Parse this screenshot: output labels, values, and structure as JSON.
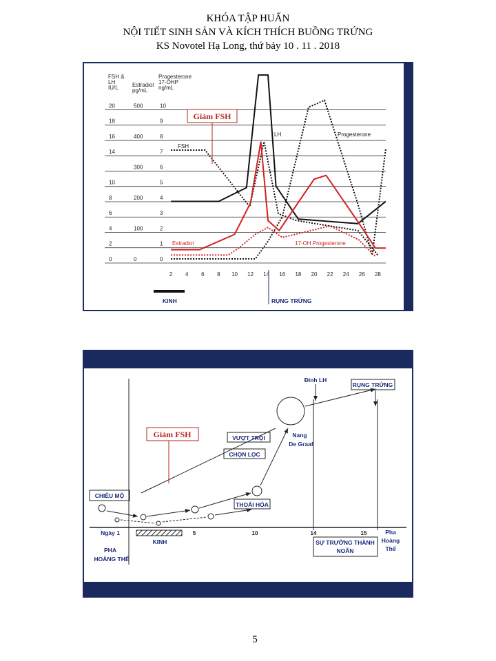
{
  "header": {
    "lines": [
      "KHÓA TẬP HUẤN",
      "NỘI TIẾT SINH SẢN VÀ KÍCH THÍCH BUỒNG TRỨNG",
      "KS Novotel Hạ Long, thứ bảy 10 . 11 . 2018"
    ]
  },
  "chart_data": {
    "type": "line",
    "axis_titles": {
      "fsh_lh": [
        "FSH &",
        "LH",
        "IU/L"
      ],
      "estradiol": [
        "Estradiol",
        "pg/mL"
      ],
      "progesterone": [
        "Progesterone",
        "17-OHP",
        "ng/mL"
      ]
    },
    "xlim": [
      0,
      29
    ],
    "xticks": [
      2,
      4,
      6,
      8,
      10,
      12,
      14,
      16,
      18,
      20,
      22,
      24,
      26,
      28
    ],
    "ylim": [
      0,
      24.8
    ],
    "yticks": [
      0,
      2,
      4,
      6,
      8,
      10,
      14,
      16,
      18,
      20
    ],
    "estradiol_lim": [
      0,
      620
    ],
    "estradiol_ticks": [
      0,
      100,
      200,
      300,
      400,
      500
    ],
    "progesterone_lim": [
      0,
      12.4
    ],
    "progesterone_ticks": [
      0,
      1,
      2,
      3,
      4,
      5,
      6,
      7,
      8,
      9,
      10
    ],
    "grid": true,
    "series": [
      {
        "name": "FSH",
        "color": "#111111",
        "dashed": true,
        "x": [
          2,
          6.3,
          11.9,
          13.7,
          15.5,
          17.8,
          25.5,
          28
        ],
        "values": [
          14.2,
          14.2,
          6.8,
          15.3,
          5.9,
          5,
          3.7,
          0.5
        ]
      },
      {
        "name": "LH",
        "color": "#111111",
        "dashed": false,
        "x": [
          2,
          8,
          11.5,
          13,
          14.2,
          15.2,
          18,
          25.5,
          29
        ],
        "values": [
          7.5,
          7.5,
          9.3,
          24,
          24,
          9.5,
          5.2,
          4.6,
          7.5
        ]
      },
      {
        "name": "Progesterone",
        "color": "#111111",
        "dashed": true,
        "x": [
          2,
          12.6,
          14.2,
          16,
          19.3,
          21.3,
          25.6,
          27.3,
          29
        ],
        "values": [
          0,
          0,
          2.3,
          5.5,
          19.8,
          20.7,
          6.8,
          0.5,
          14.4
        ]
      },
      {
        "name": "Estradiol",
        "color": "#d42020",
        "dashed": false,
        "x": [
          2,
          5.6,
          10,
          12,
          13.3,
          14.2,
          15.6,
          20,
          21.5,
          25.4,
          27.7,
          29
        ],
        "values": [
          1.2,
          1.2,
          3.2,
          7.3,
          15.3,
          5,
          3.7,
          10.4,
          10.9,
          5,
          1.4,
          1.4
        ]
      },
      {
        "name": "17-OH Progesterone",
        "color": "#d42020",
        "dashed": true,
        "x": [
          2,
          9.2,
          10.5,
          12.6,
          14.2,
          16,
          22,
          25.6,
          27.7
        ],
        "values": [
          0.5,
          0.5,
          1.4,
          3.2,
          4.1,
          2.8,
          4.3,
          2.5,
          0.3
        ]
      }
    ],
    "annotations": {
      "callout": "Giảm FSH",
      "phases": [
        "KINH",
        "RỤNG TRỨNG"
      ]
    }
  },
  "diagram": {
    "labels": {
      "lh_peak": "Đỉnh LH",
      "ovulation": "RỤNG TRỨNG",
      "fsh_drop": "Giảm FSH",
      "dominance": "VƯỢT TRỘI",
      "graaf": [
        "Nang",
        "De Graaf"
      ],
      "selection": "CHỌN LỌC",
      "recruitment": "CHIÊU MỘ",
      "atresia": "THOÁI HÓA",
      "day1": "Ngày 1",
      "days": [
        "5",
        "10",
        "14",
        "15"
      ],
      "menses": "KINH",
      "luteal_left": [
        "PHA",
        "HOÀNG THỂ"
      ],
      "maturation": [
        "SỰ TRƯỞNG THÀNH",
        "NOÃN"
      ],
      "luteal_right": [
        "Pha",
        "Hoàng",
        "Thể"
      ]
    }
  },
  "page_number": "5"
}
